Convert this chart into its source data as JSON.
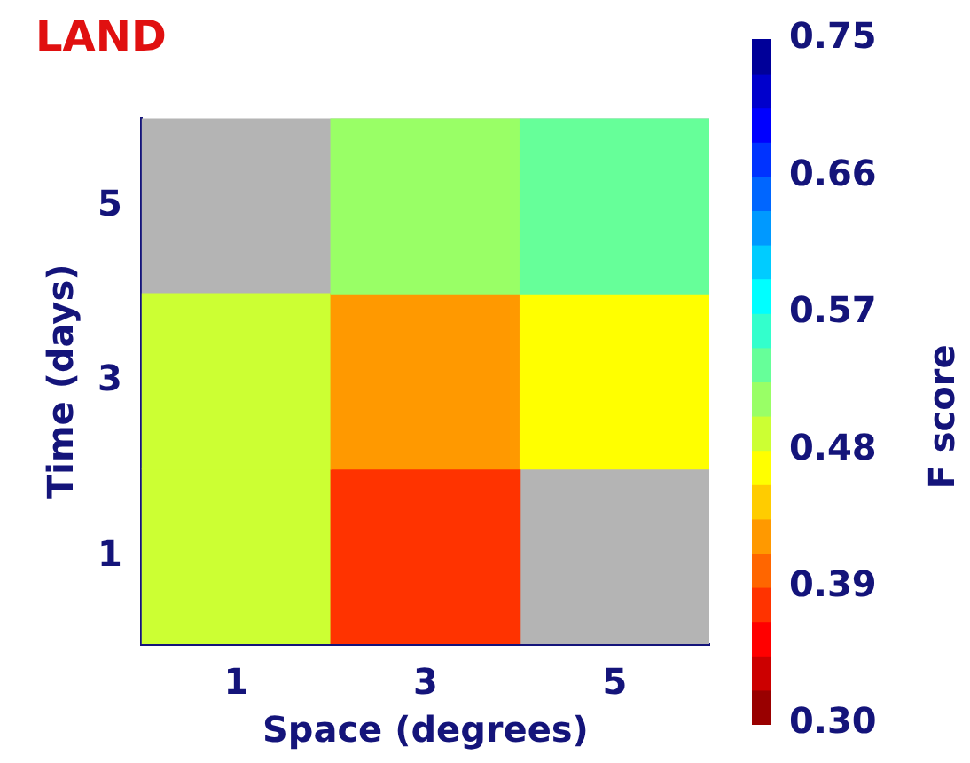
{
  "chart_data": {
    "type": "heatmap",
    "title": "LAND",
    "xlabel": "Space (degrees)",
    "ylabel": "Time (days)",
    "clabel": "F score",
    "categories": [
      "1",
      "3",
      "5"
    ],
    "y_categories": [
      "5",
      "3",
      "1"
    ],
    "cells": [
      [
        null,
        0.52,
        0.54
      ],
      [
        0.5,
        0.42,
        0.47
      ],
      [
        0.5,
        0.37,
        null
      ]
    ],
    "clim": [
      0.3,
      0.75
    ],
    "cticks": [
      {
        "value": 0.3,
        "label": "0.30"
      },
      0.39,
      0.48,
      0.57,
      0.66,
      0.75
    ]
  }
}
